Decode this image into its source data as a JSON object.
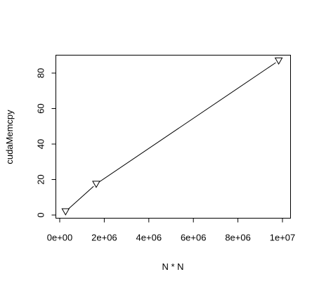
{
  "chart_data": {
    "type": "line",
    "title": "",
    "xlabel": "N * N",
    "ylabel": "cudaMemcpy",
    "xlim": [
      0,
      10000000
    ],
    "ylim": [
      0,
      90
    ],
    "x_ticks": [
      0,
      2000000,
      4000000,
      6000000,
      8000000,
      10000000
    ],
    "x_tick_labels": [
      "0e+00",
      "2e+06",
      "4e+06",
      "6e+06",
      "8e+06",
      "1e+07"
    ],
    "y_ticks": [
      0,
      20,
      40,
      60,
      80
    ],
    "y_tick_labels": [
      "0",
      "20",
      "40",
      "60",
      "80"
    ],
    "grid": false,
    "legend": "none",
    "marker": "triangle-down",
    "series": [
      {
        "x": [
          262144,
          1638400,
          9830400
        ],
        "y": [
          2,
          17.5,
          87
        ]
      }
    ]
  }
}
